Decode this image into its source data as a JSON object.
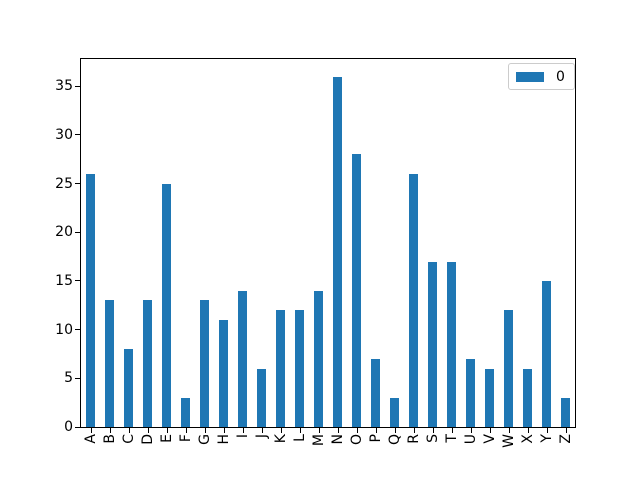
{
  "chart_data": {
    "type": "bar",
    "title": "",
    "xlabel": "",
    "ylabel": "",
    "categories": [
      "A",
      "B",
      "C",
      "D",
      "E",
      "F",
      "G",
      "H",
      "I",
      "J",
      "K",
      "L",
      "M",
      "N",
      "O",
      "P",
      "Q",
      "R",
      "S",
      "T",
      "U",
      "V",
      "W",
      "X",
      "Y",
      "Z"
    ],
    "series": [
      {
        "name": "0",
        "color": "#1f77b4",
        "values": [
          26,
          13,
          8,
          13,
          25,
          3,
          13,
          11,
          14,
          6,
          12,
          12,
          14,
          36,
          28,
          7,
          3,
          26,
          17,
          17,
          7,
          6,
          12,
          6,
          15,
          3
        ]
      }
    ],
    "ylim": [
      0,
      37.8
    ],
    "yticks": [
      0,
      5,
      10,
      15,
      20,
      25,
      30,
      35
    ],
    "grid": false,
    "bar_width_fraction": 0.5,
    "x_tick_rotation_deg": 90,
    "legend": {
      "position": "upper right",
      "entries": [
        {
          "label": "0",
          "color": "#1f77b4"
        }
      ]
    }
  },
  "colors": {
    "background": "#ffffff",
    "spine": "#000000",
    "tick_label": "#000000",
    "legend_border": "#cccccc"
  }
}
